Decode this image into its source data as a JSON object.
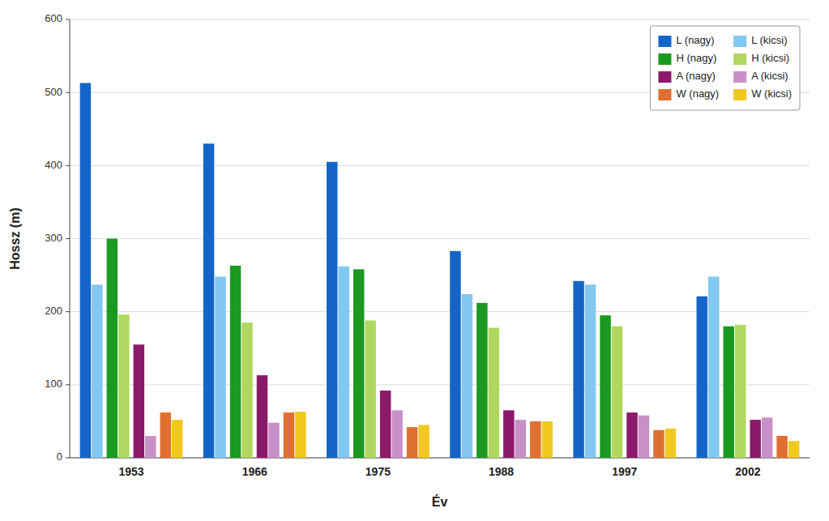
{
  "chart_data": {
    "type": "bar",
    "x_label": "Év",
    "y_label": "Hossz (m)",
    "categories": [
      "1953",
      "1966",
      "1975",
      "1988",
      "1997",
      "2002"
    ],
    "series": [
      {
        "name": "L (nagy)",
        "color": "#1565c8",
        "values": [
          513,
          430,
          405,
          283,
          242,
          221
        ]
      },
      {
        "name": "L (kicsi)",
        "color": "#82c8f0",
        "values": [
          237,
          248,
          262,
          224,
          237,
          248
        ]
      },
      {
        "name": "H (nagy)",
        "color": "#1a9a20",
        "values": [
          300,
          263,
          258,
          212,
          195,
          180
        ]
      },
      {
        "name": "H (kicsi)",
        "color": "#b0d860",
        "values": [
          196,
          185,
          188,
          178,
          180,
          182
        ]
      },
      {
        "name": "A (nagy)",
        "color": "#8b1a6b",
        "values": [
          155,
          113,
          92,
          65,
          62,
          52
        ]
      },
      {
        "name": "A (kicsi)",
        "color": "#c890c8",
        "values": [
          30,
          48,
          65,
          52,
          58,
          55
        ]
      },
      {
        "name": "W (nagy)",
        "color": "#e07030",
        "values": [
          62,
          62,
          42,
          50,
          38,
          30
        ]
      },
      {
        "name": "W (kicsi)",
        "color": "#f0c820",
        "values": [
          52,
          63,
          45,
          50,
          40,
          23
        ]
      }
    ],
    "ylim": [
      0,
      600
    ],
    "yticks": [
      0,
      100,
      200,
      300,
      400,
      500,
      600
    ],
    "grid": true,
    "legend": "upper right"
  }
}
